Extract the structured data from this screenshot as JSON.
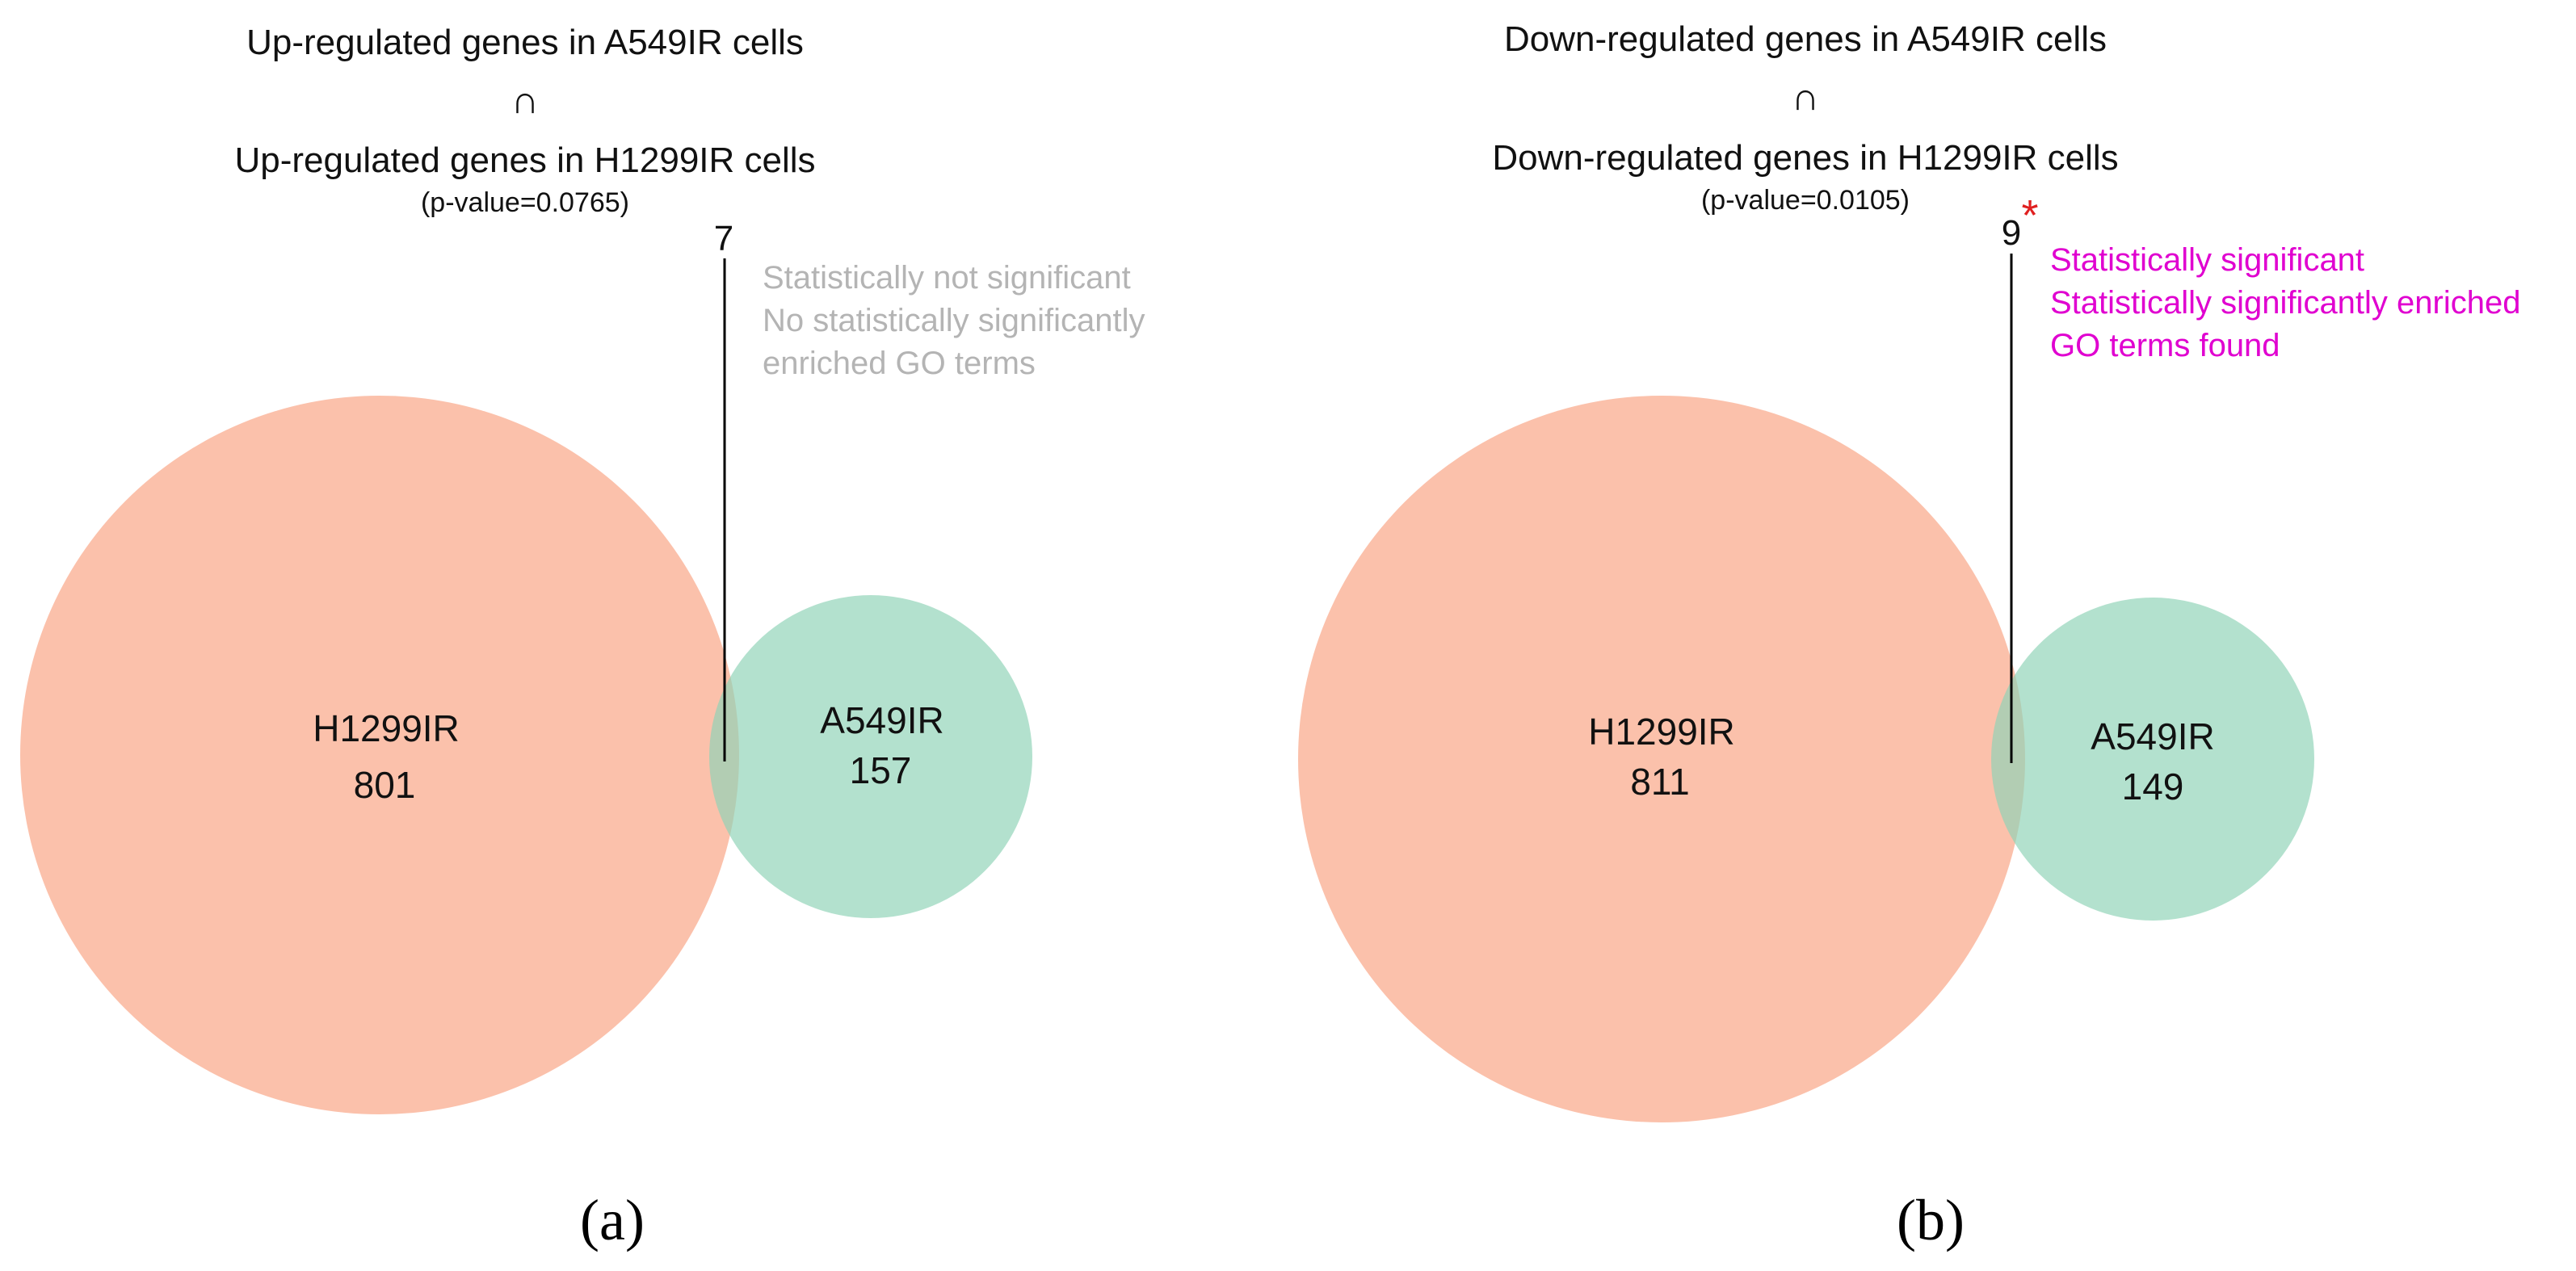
{
  "colors": {
    "large_circle": "#f9a98a",
    "small_circle": "#8fd3b7",
    "not_significant_note": "#b4b4b4",
    "significant_note": "#e000d0",
    "asterisk": "#e02020",
    "stroke": "#000000"
  },
  "panels": [
    {
      "id": "a",
      "title_line1": "Up-regulated genes in A549IR cells",
      "intersection_symbol": "∩",
      "title_line2": "Up-regulated genes in H1299IR cells",
      "p_value_text": "(p-value=0.0765)",
      "overlap_count": "7",
      "significant_marker": "",
      "note_lines": [
        "Statistically not significant",
        "No statistically significantly",
        "enriched GO terms"
      ],
      "note_significant": false,
      "large_set": {
        "name": "H1299IR",
        "count": "801"
      },
      "small_set": {
        "name": "A549IR",
        "count": "157"
      },
      "panel_label": "(a)"
    },
    {
      "id": "b",
      "title_line1": "Down-regulated genes in A549IR cells",
      "intersection_symbol": "∩",
      "title_line2": "Down-regulated genes in H1299IR cells",
      "p_value_text": "(p-value=0.0105)",
      "overlap_count": "9",
      "significant_marker": "*",
      "note_lines": [
        "Statistically significant",
        "Statistically significantly enriched",
        "GO terms found"
      ],
      "note_significant": true,
      "large_set": {
        "name": "H1299IR",
        "count": "811"
      },
      "small_set": {
        "name": "A549IR",
        "count": "149"
      },
      "panel_label": "(b)"
    }
  ]
}
